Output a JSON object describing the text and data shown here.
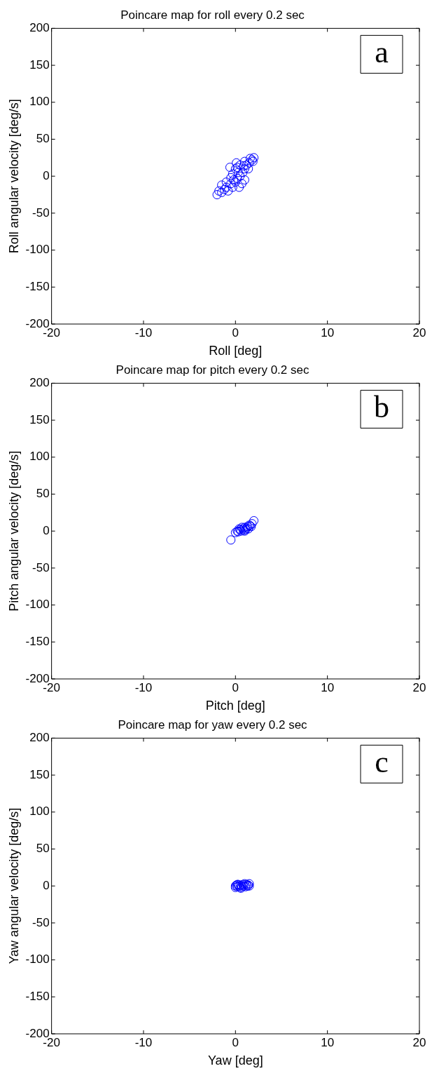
{
  "chart_data": [
    {
      "type": "scatter",
      "title": "Poincare map for roll every 0.2 sec",
      "xlabel": "Roll [deg]",
      "ylabel": "Roll angular velocity [deg/s]",
      "color": "#0000ff",
      "marker": "circle",
      "grid": false,
      "annotations": [
        "a"
      ],
      "xlim": [
        -20,
        20
      ],
      "ylim": [
        -200,
        200
      ],
      "xticks": [
        -20,
        -10,
        0,
        10,
        20
      ],
      "yticks": [
        -200,
        -150,
        -100,
        -50,
        0,
        50,
        100,
        150,
        200
      ],
      "x": [
        -2,
        -1.8,
        -1.5,
        -1.2,
        -1,
        -0.8,
        -0.5,
        -0.3,
        0,
        -0.2,
        0.2,
        0.3,
        0,
        -0.3,
        0.5,
        0.8,
        1,
        1.2,
        1.5,
        1.8,
        2,
        1.6,
        1,
        0.5,
        0.2,
        -0.5,
        -1,
        0.7,
        1,
        0.4,
        -1.5,
        1.4,
        0.1,
        -0.6,
        1.9,
        0.9
      ],
      "values": [
        -25,
        -20,
        -22,
        -18,
        -15,
        -20,
        -10,
        -15,
        -8,
        -5,
        -3,
        5,
        10,
        3,
        0,
        5,
        10,
        15,
        18,
        22,
        25,
        24,
        20,
        15,
        12,
        -2,
        -8,
        -10,
        -5,
        -15,
        -12,
        10,
        18,
        12,
        20,
        14
      ]
    },
    {
      "type": "scatter",
      "title": "Poincare map for pitch every 0.2 sec",
      "xlabel": "Pitch [deg]",
      "ylabel": "Pitch angular velocity [deg/s]",
      "color": "#0000ff",
      "marker": "circle",
      "grid": false,
      "annotations": [
        "b"
      ],
      "xlim": [
        -20,
        20
      ],
      "ylim": [
        -200,
        200
      ],
      "xticks": [
        -20,
        -10,
        0,
        10,
        20
      ],
      "yticks": [
        -200,
        -150,
        -100,
        -50,
        0,
        50,
        100,
        150,
        200
      ],
      "x": [
        -0.5,
        0,
        0.2,
        0.5,
        0.8,
        1,
        1.2,
        1.5,
        1.8,
        2,
        0.3,
        0.6,
        0.9,
        1.1,
        1.3,
        1.6,
        0.4,
        0.7,
        1.4,
        1.7,
        1
      ],
      "values": [
        -12,
        -2,
        0,
        2,
        3,
        5,
        4,
        8,
        10,
        14,
        -1,
        0,
        1,
        2,
        6,
        7,
        3,
        5,
        3,
        6,
        0
      ]
    },
    {
      "type": "scatter",
      "title": "Poincare map for yaw every 0.2 sec",
      "xlabel": "Yaw [deg]",
      "ylabel": "Yaw angular velocity [deg/s]",
      "color": "#0000ff",
      "marker": "circle",
      "grid": false,
      "annotations": [
        "c"
      ],
      "xlim": [
        -20,
        20
      ],
      "ylim": [
        -200,
        200
      ],
      "xticks": [
        -20,
        -10,
        0,
        10,
        20
      ],
      "yticks": [
        -200,
        -150,
        -100,
        -50,
        0,
        50,
        100,
        150,
        200
      ],
      "x": [
        0,
        0.2,
        0.4,
        0.6,
        0.8,
        1,
        1.2,
        1.4,
        1.5,
        0.1,
        0.3,
        0.5,
        0.7,
        0.9,
        1.1,
        1.3,
        0,
        0.2,
        1.5,
        0.6
      ],
      "values": [
        -2,
        -1,
        0,
        1,
        2,
        3,
        2,
        1,
        3,
        1,
        2,
        -2,
        -1,
        0,
        -1,
        0,
        0,
        2,
        0,
        -3
      ]
    }
  ]
}
